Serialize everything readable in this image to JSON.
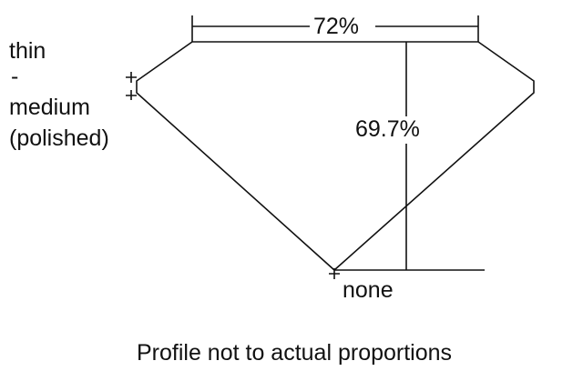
{
  "girdle_label": [
    "thin",
    "-",
    "medium",
    "(polished)"
  ],
  "table_percent": "72%",
  "depth_percent": "69.7%",
  "culet_label": "none",
  "caption": "Profile not to actual proportions",
  "line_color": "#111111"
}
